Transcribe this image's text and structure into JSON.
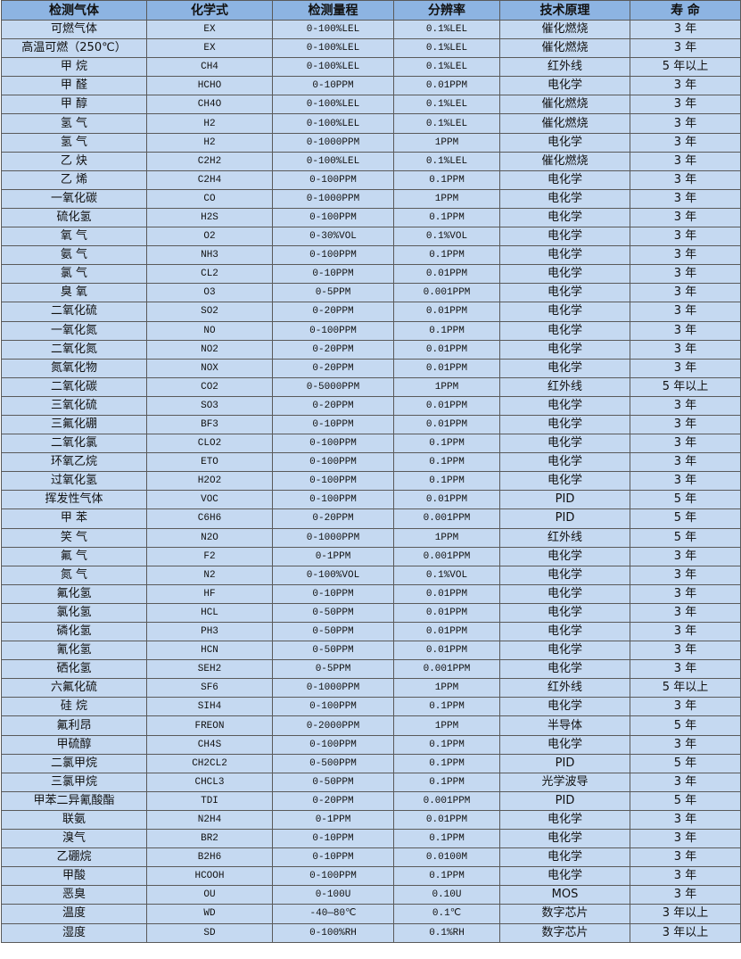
{
  "table": {
    "headers": [
      "检测气体",
      "化学式",
      "检测量程",
      "分辨率",
      "技术原理",
      "寿 命"
    ],
    "rows": [
      [
        "可燃气体",
        "EX",
        "0-100%LEL",
        "0.1%LEL",
        "催化燃烧",
        "3 年"
      ],
      [
        "高温可燃（250℃）",
        "EX",
        "0-100%LEL",
        "0.1%LEL",
        "催化燃烧",
        "3 年"
      ],
      [
        "甲 烷",
        "CH4",
        "0-100%LEL",
        "0.1%LEL",
        "红外线",
        "5 年以上"
      ],
      [
        "甲 醛",
        "HCHO",
        "0-10PPM",
        "0.01PPM",
        "电化学",
        "3 年"
      ],
      [
        "甲 醇",
        "CH4O",
        "0-100%LEL",
        "0.1%LEL",
        "催化燃烧",
        "3 年"
      ],
      [
        "氢 气",
        "H2",
        "0-100%LEL",
        "0.1%LEL",
        "催化燃烧",
        "3 年"
      ],
      [
        "氢 气",
        "H2",
        "0-1000PPM",
        "1PPM",
        "电化学",
        "3 年"
      ],
      [
        "乙 炔",
        "C2H2",
        "0-100%LEL",
        "0.1%LEL",
        "催化燃烧",
        "3 年"
      ],
      [
        "乙 烯",
        "C2H4",
        "0-100PPM",
        "0.1PPM",
        "电化学",
        "3 年"
      ],
      [
        "一氧化碳",
        "CO",
        "0-1000PPM",
        "1PPM",
        "电化学",
        "3 年"
      ],
      [
        "硫化氢",
        "H2S",
        "0-100PPM",
        "0.1PPM",
        "电化学",
        "3 年"
      ],
      [
        "氧 气",
        "O2",
        "0-30%VOL",
        "0.1%VOL",
        "电化学",
        "3 年"
      ],
      [
        "氨 气",
        "NH3",
        "0-100PPM",
        "0.1PPM",
        "电化学",
        "3 年"
      ],
      [
        "氯 气",
        "CL2",
        "0-10PPM",
        "0.01PPM",
        "电化学",
        "3 年"
      ],
      [
        "臭 氧",
        "O3",
        "0-5PPM",
        "0.001PPM",
        "电化学",
        "3 年"
      ],
      [
        "二氧化硫",
        "SO2",
        "0-20PPM",
        "0.01PPM",
        "电化学",
        "3 年"
      ],
      [
        "一氧化氮",
        "NO",
        "0-100PPM",
        "0.1PPM",
        "电化学",
        "3 年"
      ],
      [
        "二氧化氮",
        "NO2",
        "0-20PPM",
        "0.01PPM",
        "电化学",
        "3 年"
      ],
      [
        "氮氧化物",
        "NOX",
        "0-20PPM",
        "0.01PPM",
        "电化学",
        "3 年"
      ],
      [
        "二氧化碳",
        "CO2",
        "0-5000PPM",
        "1PPM",
        "红外线",
        "5 年以上"
      ],
      [
        "三氧化硫",
        "SO3",
        "0-20PPM",
        "0.01PPM",
        "电化学",
        "3 年"
      ],
      [
        "三氟化硼",
        "BF3",
        "0-10PPM",
        "0.01PPM",
        "电化学",
        "3 年"
      ],
      [
        "二氧化氯",
        "CLO2",
        "0-100PPM",
        "0.1PPM",
        "电化学",
        "3 年"
      ],
      [
        "环氧乙烷",
        "ETO",
        "0-100PPM",
        "0.1PPM",
        "电化学",
        "3 年"
      ],
      [
        "过氧化氢",
        "H2O2",
        "0-100PPM",
        "0.1PPM",
        "电化学",
        "3 年"
      ],
      [
        "挥发性气体",
        "VOC",
        "0-100PPM",
        "0.01PPM",
        "PID",
        "5 年"
      ],
      [
        "甲 苯",
        "C6H6",
        "0-20PPM",
        "0.001PPM",
        "PID",
        "5 年"
      ],
      [
        "笑 气",
        "N2O",
        "0-1000PPM",
        "1PPM",
        "红外线",
        "5 年"
      ],
      [
        "氟 气",
        "F2",
        "0-1PPM",
        "0.001PPM",
        "电化学",
        "3 年"
      ],
      [
        "氮 气",
        "N2",
        "0-100%VOL",
        "0.1%VOL",
        "电化学",
        "3 年"
      ],
      [
        "氟化氢",
        "HF",
        "0-10PPM",
        "0.01PPM",
        "电化学",
        "3 年"
      ],
      [
        "氯化氢",
        "HCL",
        "0-50PPM",
        "0.01PPM",
        "电化学",
        "3 年"
      ],
      [
        "磷化氢",
        "PH3",
        "0-50PPM",
        "0.01PPM",
        "电化学",
        "3 年"
      ],
      [
        "氰化氢",
        "HCN",
        "0-50PPM",
        "0.01PPM",
        "电化学",
        "3 年"
      ],
      [
        "硒化氢",
        "SEH2",
        "0-5PPM",
        "0.001PPM",
        "电化学",
        "3 年"
      ],
      [
        "六氟化硫",
        "SF6",
        "0-1000PPM",
        "1PPM",
        "红外线",
        "5 年以上"
      ],
      [
        "硅 烷",
        "SIH4",
        "0-100PPM",
        "0.1PPM",
        "电化学",
        "3 年"
      ],
      [
        "氟利昂",
        "FREON",
        "0-2000PPM",
        "1PPM",
        "半导体",
        "5 年"
      ],
      [
        "甲硫醇",
        "CH4S",
        "0-100PPM",
        "0.1PPM",
        "电化学",
        "3 年"
      ],
      [
        "二氯甲烷",
        "CH2CL2",
        "0-500PPM",
        "0.1PPM",
        "PID",
        "5 年"
      ],
      [
        "三氯甲烷",
        "CHCL3",
        "0-50PPM",
        "0.1PPM",
        "光学波导",
        "3 年"
      ],
      [
        "甲苯二异氰酸酯",
        "TDI",
        "0-20PPM",
        "0.001PPM",
        "PID",
        "5 年"
      ],
      [
        "联氨",
        "N2H4",
        "0-1PPM",
        "0.01PPM",
        "电化学",
        "3 年"
      ],
      [
        "溴气",
        "BR2",
        "0-10PPM",
        "0.1PPM",
        "电化学",
        "3 年"
      ],
      [
        "乙硼烷",
        "B2H6",
        "0-10PPM",
        "0.0100M",
        "电化学",
        "3 年"
      ],
      [
        "甲酸",
        "HCOOH",
        "0-100PPM",
        "0.1PPM",
        "电化学",
        "3 年"
      ],
      [
        "恶臭",
        "OU",
        "0-100U",
        "0.10U",
        "MOS",
        "3 年"
      ],
      [
        "温度",
        "WD",
        "-40—80℃",
        "0.1℃",
        "数字芯片",
        "3 年以上"
      ],
      [
        "湿度",
        "SD",
        "0-100%RH",
        "0.1%RH",
        "数字芯片",
        "3 年以上"
      ]
    ]
  },
  "colors": {
    "header_bg": "#8db4e2",
    "row_bg": "#c5d9f1",
    "border": "#5a5a5a"
  }
}
